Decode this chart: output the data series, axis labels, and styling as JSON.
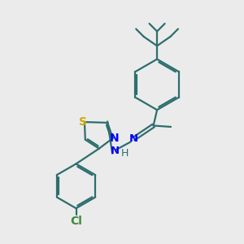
{
  "bg_color": "#ebebeb",
  "bond_color": "#2d6e6e",
  "N_color": "#0000ff",
  "S_color": "#ccaa00",
  "Cl_color": "#3a8a3a",
  "line_width": 1.6,
  "figsize": [
    3.0,
    3.0
  ],
  "dpi": 100,
  "xlim": [
    0,
    10
  ],
  "ylim": [
    0,
    10
  ]
}
